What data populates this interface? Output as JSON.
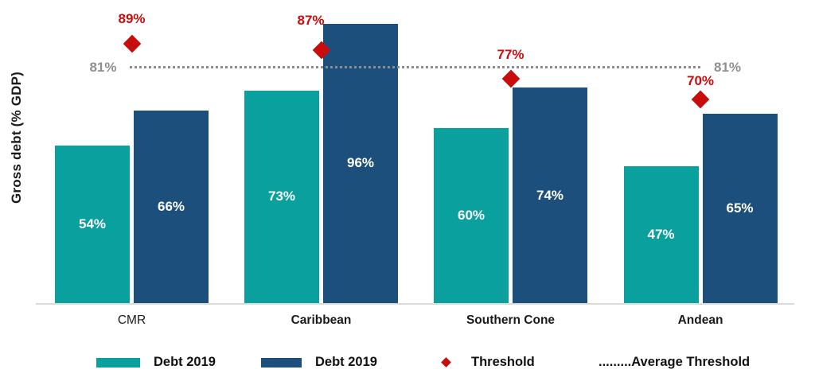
{
  "chart_data": {
    "type": "bar",
    "title": "",
    "ylabel": "Gross debt (% GDP)",
    "xlabel": "",
    "value_suffix": "%",
    "categories": [
      "CMR",
      "Caribbean",
      "Southern Cone",
      "Andean"
    ],
    "series": [
      {
        "name": "Debt 2019",
        "color": "#0aa09e",
        "values": [
          54,
          73,
          60,
          47
        ]
      },
      {
        "name": "Debt 2019",
        "color": "#1c4f7c",
        "values": [
          66,
          96,
          74,
          65
        ]
      }
    ],
    "threshold": {
      "name": "Threshold",
      "marker": "diamond",
      "color": "#c90d0d",
      "values": [
        89,
        87,
        77,
        70
      ]
    },
    "average_threshold": {
      "name": "Average Threshold",
      "value": 81,
      "label": "81%",
      "style": "dotted",
      "color": "#8c8c8c"
    },
    "ylim": [
      0,
      105
    ],
    "grid": false,
    "legend_position": "bottom"
  },
  "legend": {
    "items": [
      {
        "label": "Debt 2019",
        "swatch": "teal"
      },
      {
        "label": "Debt 2019",
        "swatch": "blue"
      },
      {
        "label": "Threshold",
        "swatch": "red-diamond"
      },
      {
        "label": ".........Average Threshold",
        "swatch": "none"
      }
    ]
  }
}
